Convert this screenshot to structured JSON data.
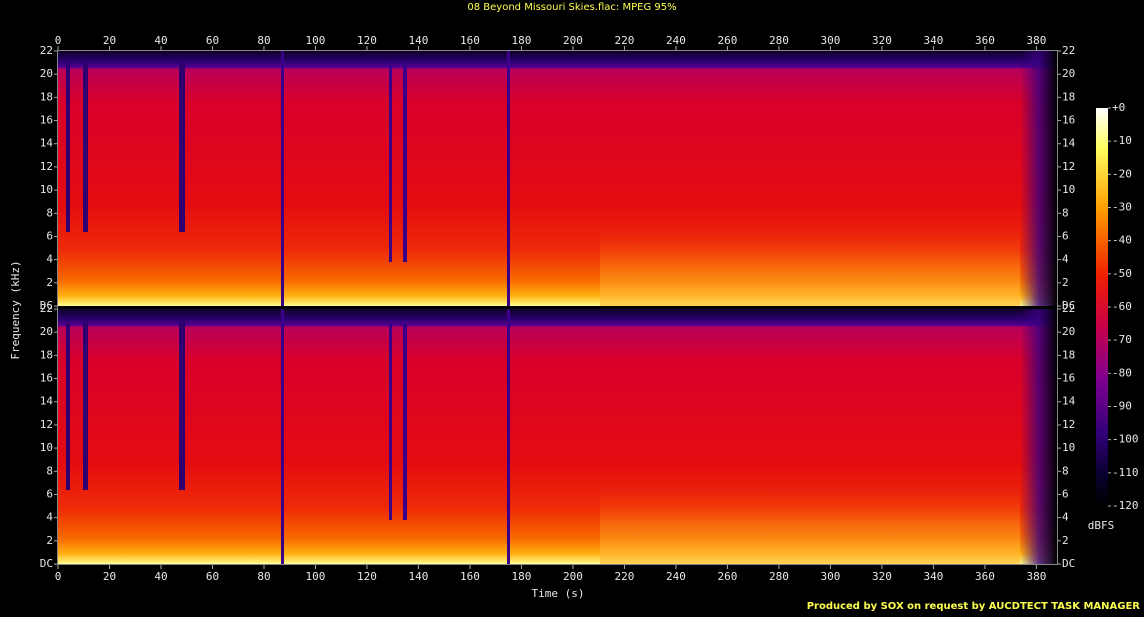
{
  "chart_data": {
    "type": "spectrogram",
    "title": "08 Beyond Missouri Skies.flac: MPEG 95%",
    "x_label": "Time (s)",
    "y_label": "Frequency (kHz)",
    "xlim": [
      0,
      388
    ],
    "xticks": [
      0,
      20,
      40,
      60,
      80,
      100,
      120,
      140,
      160,
      180,
      200,
      220,
      240,
      260,
      280,
      300,
      320,
      340,
      360,
      380
    ],
    "ylim": [
      0,
      22
    ],
    "yticks": [
      {
        "value": 0,
        "label": "DC"
      },
      2,
      4,
      6,
      8,
      10,
      12,
      14,
      16,
      18,
      20,
      22
    ],
    "colorbar": {
      "label": "dBFS",
      "lim": [
        -120,
        0
      ],
      "ticks": [
        {
          "value": 0,
          "label": "+0"
        },
        -10,
        -20,
        -30,
        -40,
        -50,
        -60,
        -70,
        -80,
        -90,
        -100,
        -110,
        -120
      ]
    },
    "footer": "Produced by SOX on request by AUCDTECT TASK MANAGER"
  }
}
